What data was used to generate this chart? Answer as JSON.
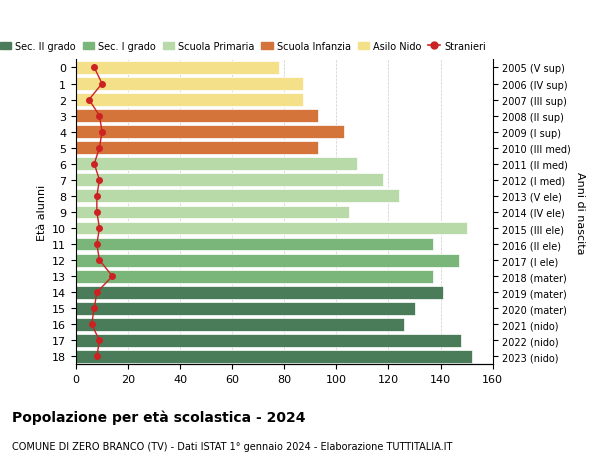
{
  "ages": [
    18,
    17,
    16,
    15,
    14,
    13,
    12,
    11,
    10,
    9,
    8,
    7,
    6,
    5,
    4,
    3,
    2,
    1,
    0
  ],
  "years": [
    "2005 (V sup)",
    "2006 (IV sup)",
    "2007 (III sup)",
    "2008 (II sup)",
    "2009 (I sup)",
    "2010 (III med)",
    "2011 (II med)",
    "2012 (I med)",
    "2013 (V ele)",
    "2014 (IV ele)",
    "2015 (III ele)",
    "2016 (II ele)",
    "2017 (I ele)",
    "2018 (mater)",
    "2019 (mater)",
    "2020 (mater)",
    "2021 (nido)",
    "2022 (nido)",
    "2023 (nido)"
  ],
  "bar_values": [
    152,
    148,
    126,
    130,
    141,
    137,
    147,
    137,
    150,
    105,
    124,
    118,
    108,
    93,
    103,
    93,
    87,
    87,
    78
  ],
  "stranieri": [
    8,
    9,
    6,
    7,
    8,
    14,
    9,
    8,
    9,
    8,
    8,
    9,
    7,
    9,
    10,
    9,
    5,
    10,
    7
  ],
  "bar_colors": [
    "#4a7c59",
    "#4a7c59",
    "#4a7c59",
    "#4a7c59",
    "#4a7c59",
    "#7ab57a",
    "#7ab57a",
    "#7ab57a",
    "#b8d9a8",
    "#b8d9a8",
    "#b8d9a8",
    "#b8d9a8",
    "#b8d9a8",
    "#d4743a",
    "#d4743a",
    "#d4743a",
    "#f5e08a",
    "#f5e08a",
    "#f5e08a"
  ],
  "color_sec2": "#4a7c59",
  "color_sec1": "#7ab57a",
  "color_prim": "#b8d9a8",
  "color_inf": "#d4743a",
  "color_nido": "#f5e08a",
  "color_stranieri": "#cc2222",
  "ylabel_left": "Età alunni",
  "ylabel_right": "Anni di nascita",
  "title": "Popolazione per età scolastica - 2024",
  "subtitle": "COMUNE DI ZERO BRANCO (TV) - Dati ISTAT 1° gennaio 2024 - Elaborazione TUTTITALIA.IT",
  "xlim": [
    0,
    160
  ],
  "xticks": [
    0,
    20,
    40,
    60,
    80,
    100,
    120,
    140,
    160
  ],
  "legend_labels": [
    "Sec. II grado",
    "Sec. I grado",
    "Scuola Primaria",
    "Scuola Infanzia",
    "Asilo Nido",
    "Stranieri"
  ],
  "background_color": "#ffffff"
}
